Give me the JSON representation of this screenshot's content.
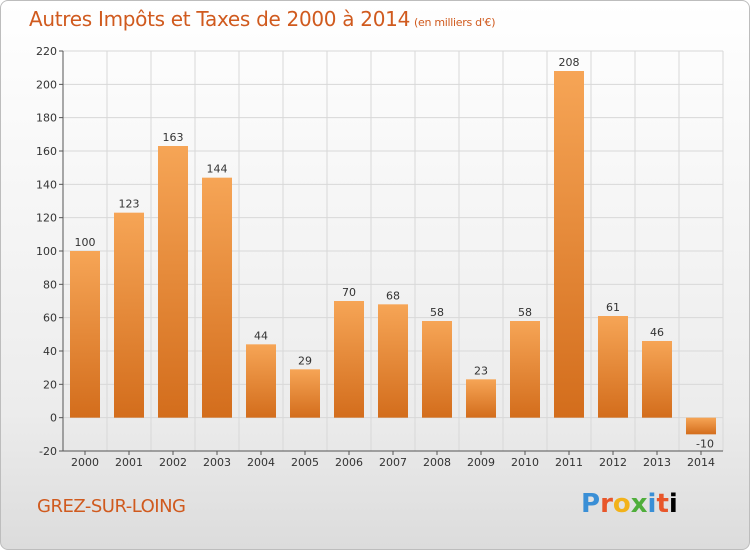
{
  "title": "Autres Impôts et Taxes de 2000 à 2014",
  "unit_label": "(en milliers d'€)",
  "commune": "GREZ-SUR-LOING",
  "logo": {
    "letters": [
      "P",
      "r",
      "o",
      "x",
      "i",
      "t",
      "i"
    ]
  },
  "colors": {
    "bar_top": "#f6a556",
    "bar_bottom": "#d36d1c",
    "title": "#d05a1e",
    "grid": "#d8d8d8"
  },
  "chart_data": {
    "type": "bar",
    "title": "Autres Impôts et Taxes de 2000 à 2014",
    "ylabel": "",
    "xlabel": "",
    "categories": [
      "2000",
      "2001",
      "2002",
      "2003",
      "2004",
      "2005",
      "2006",
      "2007",
      "2008",
      "2009",
      "2010",
      "2011",
      "2012",
      "2013",
      "2014"
    ],
    "values": [
      100,
      123,
      163,
      144,
      44,
      29,
      70,
      68,
      58,
      23,
      58,
      208,
      61,
      46,
      -10
    ],
    "ylim": [
      -20,
      220
    ],
    "yticks": [
      -20,
      0,
      20,
      40,
      60,
      80,
      100,
      120,
      140,
      160,
      180,
      200,
      220
    ],
    "grid": true,
    "legend": "none"
  }
}
